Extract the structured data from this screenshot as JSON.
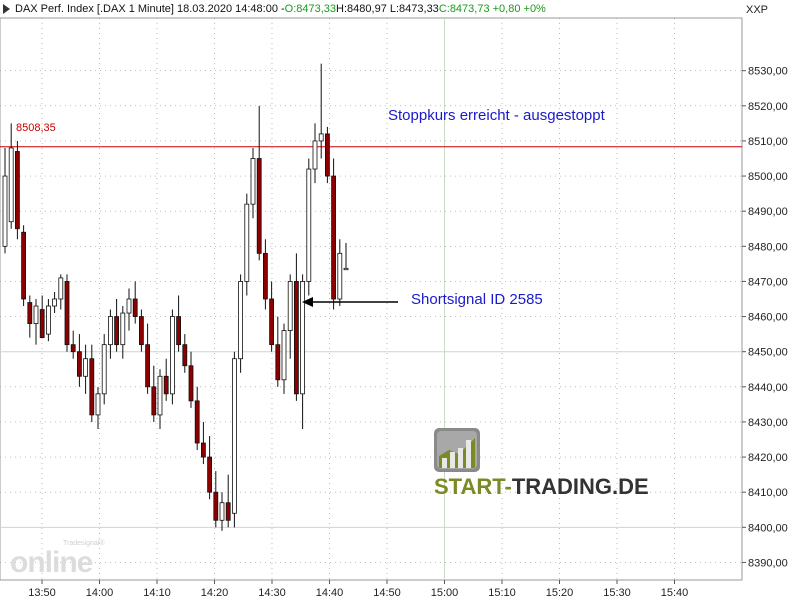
{
  "header": {
    "instrument": "DAX Perf. Index [.DAX  1 Minute] 18.03.2020 14:48:00 - ",
    "open": "O:8473,33",
    "hlc": " H:8480,97 L:8473,33 ",
    "close_change": "C:8473,73 +0,80 +0%"
  },
  "symbol": "XXP",
  "annotations": {
    "stop": "Stoppkurs erreicht - ausgestoppt",
    "signal": "Shortsignal ID 2585"
  },
  "level": {
    "label": "8508,35",
    "value": 8508.35,
    "color": "#cc0000"
  },
  "brand": {
    "part1": "START-",
    "part2": "TRADING.DE"
  },
  "watermark": {
    "small": "Tradesignal®",
    "big": "online"
  },
  "colors": {
    "up": "#ffffff",
    "down": "#8b0000",
    "wick": "#111111",
    "grid": "#c8dcc8",
    "annotation": "#1a1acc"
  },
  "chart_data": {
    "type": "candlestick",
    "ylim": [
      8385,
      8545
    ],
    "y_ticks": [
      8390,
      8400,
      8410,
      8420,
      8430,
      8440,
      8450,
      8460,
      8470,
      8480,
      8490,
      8500,
      8510,
      8520,
      8530
    ],
    "y_tick_labels": [
      "8390,00",
      "8400,00",
      "8410,00",
      "8420,00",
      "8430,00",
      "8440,00",
      "8450,00",
      "8460,00",
      "8470,00",
      "8480,00",
      "8490,00",
      "8500,00",
      "8510,00",
      "8520,00",
      "8530,00"
    ],
    "x_tick_labels": [
      "13:50",
      "14:00",
      "14:10",
      "14:20",
      "14:30",
      "14:40",
      "14:50",
      "15:00",
      "15:10",
      "15:20",
      "15:30",
      "15:40"
    ],
    "x_tick_times": [
      "13:50",
      "14:00",
      "14:10",
      "14:20",
      "14:30",
      "14:40",
      "14:50",
      "15:00",
      "15:10",
      "15:20",
      "15:30",
      "15:40"
    ],
    "horizontal_line": 8508.35,
    "candles": [
      [
        8480,
        8508,
        8478,
        8500
      ],
      [
        8487,
        8515,
        8485,
        8508
      ],
      [
        8507,
        8510,
        8482,
        8485
      ],
      [
        8484,
        8486,
        8463,
        8465
      ],
      [
        8464,
        8466,
        8454,
        8458
      ],
      [
        8458,
        8465,
        8452,
        8463
      ],
      [
        8462,
        8466,
        8454,
        8454
      ],
      [
        8455,
        8465,
        8453,
        8463
      ],
      [
        8463,
        8467,
        8461,
        8465
      ],
      [
        8465,
        8472,
        8462,
        8471
      ],
      [
        8470,
        8472,
        8450,
        8452
      ],
      [
        8452,
        8456,
        8448,
        8450
      ],
      [
        8450,
        8455,
        8440,
        8443
      ],
      [
        8443,
        8452,
        8438,
        8448
      ],
      [
        8448,
        8452,
        8430,
        8432
      ],
      [
        8432,
        8440,
        8428,
        8438
      ],
      [
        8438,
        8455,
        8435,
        8452
      ],
      [
        8452,
        8462,
        8448,
        8460
      ],
      [
        8460,
        8465,
        8450,
        8452
      ],
      [
        8452,
        8463,
        8448,
        8461
      ],
      [
        8461,
        8468,
        8456,
        8465
      ],
      [
        8465,
        8470,
        8458,
        8460
      ],
      [
        8460,
        8462,
        8450,
        8452
      ],
      [
        8452,
        8458,
        8438,
        8440
      ],
      [
        8440,
        8446,
        8430,
        8432
      ],
      [
        8432,
        8445,
        8428,
        8443
      ],
      [
        8443,
        8448,
        8436,
        8438
      ],
      [
        8438,
        8462,
        8435,
        8460
      ],
      [
        8460,
        8466,
        8450,
        8452
      ],
      [
        8452,
        8455,
        8444,
        8446
      ],
      [
        8446,
        8450,
        8434,
        8436
      ],
      [
        8436,
        8440,
        8422,
        8424
      ],
      [
        8424,
        8430,
        8418,
        8420
      ],
      [
        8420,
        8426,
        8408,
        8410
      ],
      [
        8410,
        8416,
        8400,
        8402
      ],
      [
        8402,
        8410,
        8399,
        8407
      ],
      [
        8407,
        8415,
        8400,
        8402
      ],
      [
        8404,
        8450,
        8400,
        8448
      ],
      [
        8448,
        8472,
        8444,
        8470
      ],
      [
        8470,
        8495,
        8466,
        8492
      ],
      [
        8492,
        8508,
        8488,
        8505
      ],
      [
        8505,
        8520,
        8476,
        8478
      ],
      [
        8478,
        8482,
        8462,
        8465
      ],
      [
        8465,
        8470,
        8450,
        8452
      ],
      [
        8452,
        8460,
        8440,
        8442
      ],
      [
        8442,
        8458,
        8438,
        8456
      ],
      [
        8456,
        8472,
        8448,
        8470
      ],
      [
        8470,
        8478,
        8436,
        8438
      ],
      [
        8438,
        8472,
        8428,
        8470
      ],
      [
        8470,
        8505,
        8466,
        8502
      ],
      [
        8502,
        8515,
        8498,
        8510
      ],
      [
        8510,
        8532,
        8505,
        8512
      ],
      [
        8512,
        8514,
        8498,
        8500
      ],
      [
        8500,
        8505,
        8462,
        8465
      ],
      [
        8465,
        8482,
        8463,
        8478
      ],
      [
        8473.33,
        8480.97,
        8473.33,
        8473.73
      ]
    ]
  }
}
